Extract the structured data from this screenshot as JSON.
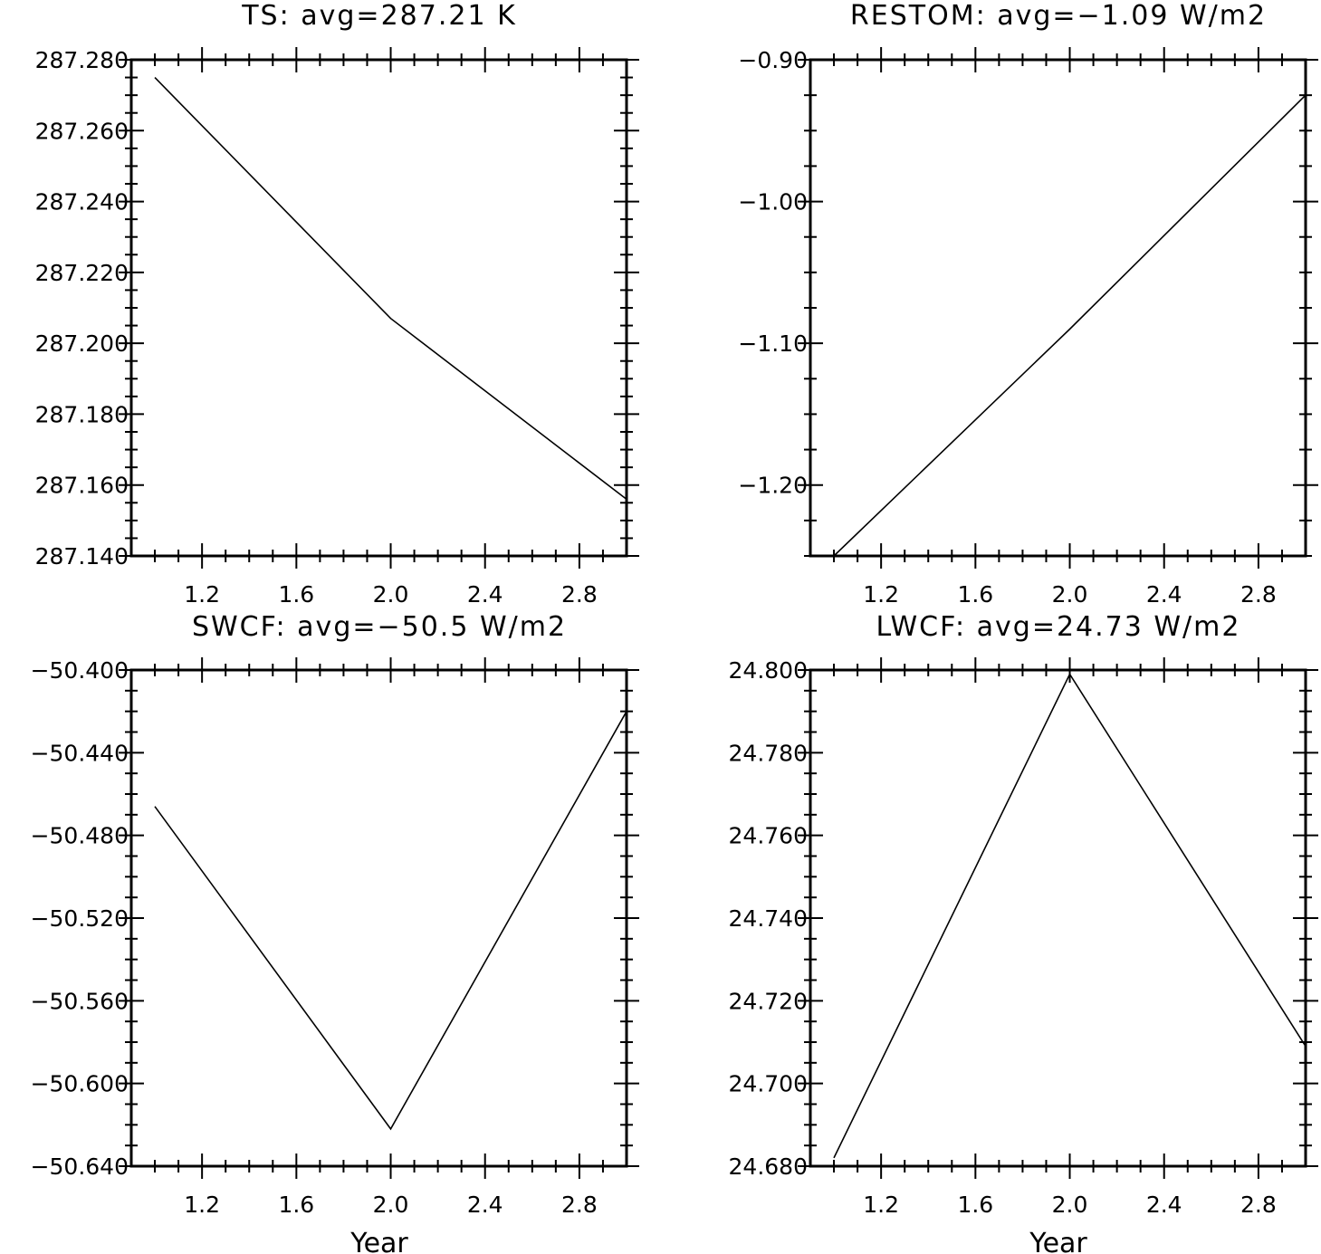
{
  "chart_data": [
    {
      "type": "line",
      "title": "TS: avg=287.21 K",
      "xlabel": "",
      "ylabel": "",
      "x": [
        1.0,
        2.0,
        3.0
      ],
      "series": [
        {
          "values": [
            287.275,
            287.207,
            287.156
          ]
        }
      ],
      "xlim": [
        0.9,
        3.0
      ],
      "ylim": [
        287.14,
        287.28
      ],
      "xticks": [
        1.2,
        1.6,
        2.0,
        2.4,
        2.8
      ],
      "xtick_labels": [
        "1.2",
        "1.6",
        "2.0",
        "2.4",
        "2.8"
      ],
      "yticks": [
        287.14,
        287.16,
        287.18,
        287.2,
        287.22,
        287.24,
        287.26,
        287.28
      ],
      "ytick_labels": [
        "287.140",
        "287.160",
        "287.180",
        "287.200",
        "287.220",
        "287.240",
        "287.260",
        "287.280"
      ],
      "grid": false
    },
    {
      "type": "line",
      "title": "RESTOM: avg=−1.09 W/m2",
      "xlabel": "",
      "ylabel": "",
      "x": [
        1.0,
        2.0,
        3.0
      ],
      "series": [
        {
          "values": [
            -1.25,
            -1.09,
            -0.925
          ]
        }
      ],
      "xlim": [
        0.9,
        3.0
      ],
      "ylim": [
        -1.25,
        -0.9
      ],
      "xticks": [
        1.2,
        1.6,
        2.0,
        2.4,
        2.8
      ],
      "xtick_labels": [
        "1.2",
        "1.6",
        "2.0",
        "2.4",
        "2.8"
      ],
      "yticks": [
        -1.2,
        -1.1,
        -1.0,
        -0.9
      ],
      "ytick_labels": [
        "−1.20",
        "−1.10",
        "−1.00",
        "−0.90"
      ],
      "grid": false
    },
    {
      "type": "line",
      "title": "SWCF: avg=−50.5 W/m2",
      "xlabel": "Year",
      "ylabel": "",
      "x": [
        1.0,
        2.0,
        3.0
      ],
      "series": [
        {
          "values": [
            -50.466,
            -50.622,
            -50.42
          ]
        }
      ],
      "xlim": [
        0.9,
        3.0
      ],
      "ylim": [
        -50.64,
        -50.4
      ],
      "xticks": [
        1.2,
        1.6,
        2.0,
        2.4,
        2.8
      ],
      "xtick_labels": [
        "1.2",
        "1.6",
        "2.0",
        "2.4",
        "2.8"
      ],
      "yticks": [
        -50.64,
        -50.6,
        -50.56,
        -50.52,
        -50.48,
        -50.44,
        -50.4
      ],
      "ytick_labels": [
        "−50.640",
        "−50.600",
        "−50.560",
        "−50.520",
        "−50.480",
        "−50.440",
        "−50.400"
      ],
      "grid": false
    },
    {
      "type": "line",
      "title": "LWCF: avg=24.73 W/m2",
      "xlabel": "Year",
      "ylabel": "",
      "x": [
        1.0,
        2.0,
        3.0
      ],
      "series": [
        {
          "values": [
            24.682,
            24.799,
            24.709
          ]
        }
      ],
      "xlim": [
        0.9,
        3.0
      ],
      "ylim": [
        24.68,
        24.8
      ],
      "xticks": [
        1.2,
        1.6,
        2.0,
        2.4,
        2.8
      ],
      "xtick_labels": [
        "1.2",
        "1.6",
        "2.0",
        "2.4",
        "2.8"
      ],
      "yticks": [
        24.68,
        24.7,
        24.72,
        24.74,
        24.76,
        24.78,
        24.8
      ],
      "ytick_labels": [
        "24.680",
        "24.700",
        "24.720",
        "24.740",
        "24.760",
        "24.780",
        "24.800"
      ],
      "grid": false
    }
  ]
}
